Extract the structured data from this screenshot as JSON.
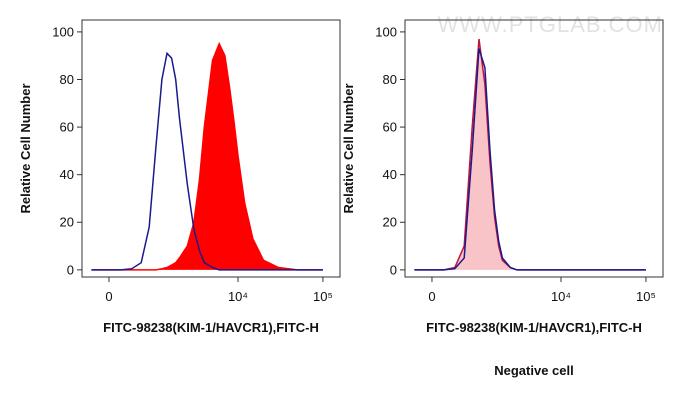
{
  "chart_data": [
    {
      "type": "histogram-overlay",
      "xlabel": "FITC-98238(KIM-1/HAVCR1),FITC-H",
      "ylabel": "Relative Cell Number",
      "xscale": "biexponential",
      "xlim": [
        -484,
        158800
      ],
      "ylim": [
        -3,
        105
      ],
      "xticks": [
        0,
        {
          "value": 10000,
          "label": "10⁴"
        },
        {
          "value": 100000,
          "label": "10⁵"
        }
      ],
      "yticks": [
        0,
        20,
        40,
        60,
        80,
        100
      ],
      "x": [
        -300,
        0,
        200,
        400,
        600,
        800,
        1000,
        1200,
        1400,
        1600,
        1800,
        2000,
        2500,
        3000,
        3500,
        4000,
        5000,
        6000,
        7000,
        8000,
        9000,
        10000,
        12000,
        15000,
        20000,
        30000,
        50000,
        100000
      ],
      "series": [
        {
          "color": "#ff0000",
          "fill": "#ff0000",
          "values": [
            0,
            0,
            0,
            0,
            0,
            0,
            0,
            0.5,
            1,
            2,
            3,
            5,
            10,
            20,
            38,
            60,
            88,
            95,
            90,
            76,
            62,
            48,
            28,
            13,
            4,
            1,
            0,
            0
          ]
        },
        {
          "color": "#1a1a8c",
          "values": [
            0,
            0,
            0,
            0.5,
            3,
            18,
            52,
            80,
            91,
            89,
            80,
            64,
            36,
            17,
            8,
            3,
            1,
            0,
            0,
            0,
            0,
            0,
            0,
            0,
            0,
            0,
            0,
            0
          ]
        }
      ]
    },
    {
      "type": "histogram-overlay",
      "xlabel": "FITC-98238(KIM-1/HAVCR1),FITC-H",
      "ylabel": "Relative Cell Number",
      "subtitle": "Negative cell",
      "watermark": "WWW.PTGLAB.COM",
      "xscale": "biexponential",
      "xlim": [
        -484,
        158800
      ],
      "ylim": [
        -3,
        105
      ],
      "xticks": [
        0,
        {
          "value": 10000,
          "label": "10⁴"
        },
        {
          "value": 100000,
          "label": "10⁵"
        }
      ],
      "yticks": [
        0,
        20,
        40,
        60,
        80,
        100
      ],
      "x": [
        -300,
        0,
        200,
        400,
        600,
        800,
        1000,
        1200,
        1400,
        1600,
        1800,
        2000,
        2500,
        3000,
        3500,
        4000,
        5000,
        6000,
        7000,
        8000,
        9000,
        10000,
        12000,
        15000,
        20000,
        30000,
        50000,
        100000
      ],
      "series": [
        {
          "color": "#c0143c",
          "fill": "#f9c4c8",
          "values": [
            0,
            0,
            0,
            1,
            10,
            60,
            97,
            78,
            45,
            22,
            10,
            4,
            1,
            0,
            0,
            0,
            0,
            0,
            0,
            0,
            0,
            0,
            0,
            0,
            0,
            0,
            0,
            0
          ]
        },
        {
          "color": "#1a1a8c",
          "values": [
            0,
            0,
            0,
            0.5,
            5,
            50,
            93,
            85,
            50,
            25,
            12,
            5,
            1,
            0,
            0,
            0,
            0,
            0,
            0,
            0,
            0,
            0,
            0,
            0,
            0,
            0,
            0,
            0
          ]
        }
      ]
    }
  ]
}
